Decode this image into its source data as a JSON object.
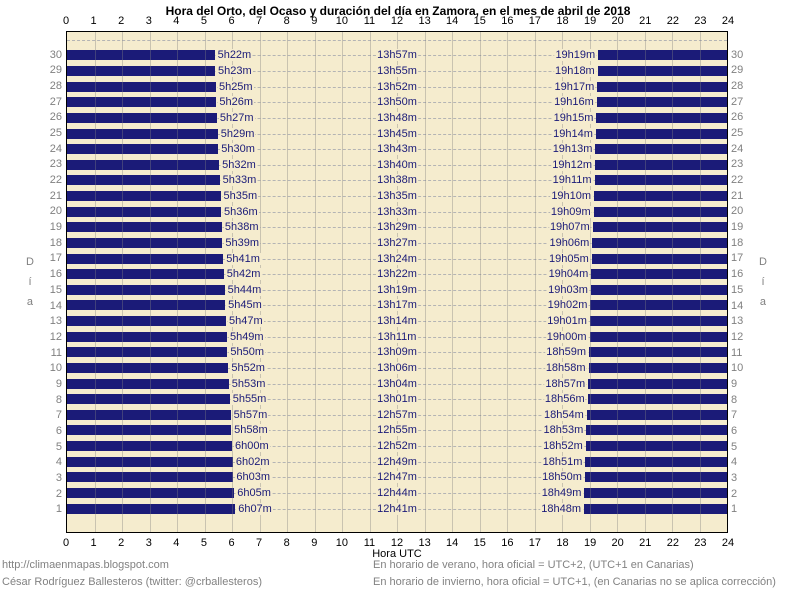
{
  "title": "Hora del Orto, del Ocaso y duración del día en Zamora, en el mes de abril de 2018",
  "footer": {
    "left_line1": "http://climaenmapas.blogspot.com",
    "left_line2": "César Rodríguez Ballesteros (twitter: @crballesteros)",
    "right_line1": "En horario de verano, hora oficial = UTC+2, (UTC+1 en Canarias)",
    "right_line2": "En horario de invierno, hora oficial = UTC+1, (en Canarias no se aplica corrección)"
  },
  "colors": {
    "plot_background": "#F5ECCE",
    "bar": "#1B1B78",
    "time_label": "#1B1B78",
    "grid_vertical": "rgba(128,128,128,0.38)",
    "grid_horizontal": "#B4B4B4",
    "day_label": "#808080",
    "footer_text": "#828282",
    "axis_text": "#000000"
  },
  "chart_data": {
    "type": "bar",
    "orientation": "horizontal",
    "description": "Night spans drawn as navy bars from 0h to sunrise and from sunset to 24h for each day; daylight region left in cream with sunrise, duration and sunset labels",
    "title": "Hora del Orto, del Ocaso y duración del día en Zamora, en el mes de abril de 2018",
    "xlabel": "Hora UTC",
    "ylabel": "Día",
    "xlim": [
      0,
      24
    ],
    "grid": true,
    "x_ticks": [
      0,
      1,
      2,
      3,
      4,
      5,
      6,
      7,
      8,
      9,
      10,
      11,
      12,
      13,
      14,
      15,
      16,
      17,
      18,
      19,
      20,
      21,
      22,
      23,
      24
    ],
    "days": [
      {
        "day": 30,
        "sunrise": "5h22m",
        "duration": "13h57m",
        "sunset": "19h19m"
      },
      {
        "day": 29,
        "sunrise": "5h23m",
        "duration": "13h55m",
        "sunset": "19h18m"
      },
      {
        "day": 28,
        "sunrise": "5h25m",
        "duration": "13h52m",
        "sunset": "19h17m"
      },
      {
        "day": 27,
        "sunrise": "5h26m",
        "duration": "13h50m",
        "sunset": "19h16m"
      },
      {
        "day": 26,
        "sunrise": "5h27m",
        "duration": "13h48m",
        "sunset": "19h15m"
      },
      {
        "day": 25,
        "sunrise": "5h29m",
        "duration": "13h45m",
        "sunset": "19h14m"
      },
      {
        "day": 24,
        "sunrise": "5h30m",
        "duration": "13h43m",
        "sunset": "19h13m"
      },
      {
        "day": 23,
        "sunrise": "5h32m",
        "duration": "13h40m",
        "sunset": "19h12m"
      },
      {
        "day": 22,
        "sunrise": "5h33m",
        "duration": "13h38m",
        "sunset": "19h11m"
      },
      {
        "day": 21,
        "sunrise": "5h35m",
        "duration": "13h35m",
        "sunset": "19h10m"
      },
      {
        "day": 20,
        "sunrise": "5h36m",
        "duration": "13h33m",
        "sunset": "19h09m"
      },
      {
        "day": 19,
        "sunrise": "5h38m",
        "duration": "13h29m",
        "sunset": "19h07m"
      },
      {
        "day": 18,
        "sunrise": "5h39m",
        "duration": "13h27m",
        "sunset": "19h06m"
      },
      {
        "day": 17,
        "sunrise": "5h41m",
        "duration": "13h24m",
        "sunset": "19h05m"
      },
      {
        "day": 16,
        "sunrise": "5h42m",
        "duration": "13h22m",
        "sunset": "19h04m"
      },
      {
        "day": 15,
        "sunrise": "5h44m",
        "duration": "13h19m",
        "sunset": "19h03m"
      },
      {
        "day": 14,
        "sunrise": "5h45m",
        "duration": "13h17m",
        "sunset": "19h02m"
      },
      {
        "day": 13,
        "sunrise": "5h47m",
        "duration": "13h14m",
        "sunset": "19h01m"
      },
      {
        "day": 12,
        "sunrise": "5h49m",
        "duration": "13h11m",
        "sunset": "19h00m"
      },
      {
        "day": 11,
        "sunrise": "5h50m",
        "duration": "13h09m",
        "sunset": "18h59m"
      },
      {
        "day": 10,
        "sunrise": "5h52m",
        "duration": "13h06m",
        "sunset": "18h58m"
      },
      {
        "day": 9,
        "sunrise": "5h53m",
        "duration": "13h04m",
        "sunset": "18h57m"
      },
      {
        "day": 8,
        "sunrise": "5h55m",
        "duration": "13h01m",
        "sunset": "18h56m"
      },
      {
        "day": 7,
        "sunrise": "5h57m",
        "duration": "12h57m",
        "sunset": "18h54m"
      },
      {
        "day": 6,
        "sunrise": "5h58m",
        "duration": "12h55m",
        "sunset": "18h53m"
      },
      {
        "day": 5,
        "sunrise": "6h00m",
        "duration": "12h52m",
        "sunset": "18h52m"
      },
      {
        "day": 4,
        "sunrise": "6h02m",
        "duration": "12h49m",
        "sunset": "18h51m"
      },
      {
        "day": 3,
        "sunrise": "6h03m",
        "duration": "12h47m",
        "sunset": "18h50m"
      },
      {
        "day": 2,
        "sunrise": "6h05m",
        "duration": "12h44m",
        "sunset": "18h49m"
      },
      {
        "day": 1,
        "sunrise": "6h07m",
        "duration": "12h41m",
        "sunset": "18h48m"
      }
    ]
  }
}
